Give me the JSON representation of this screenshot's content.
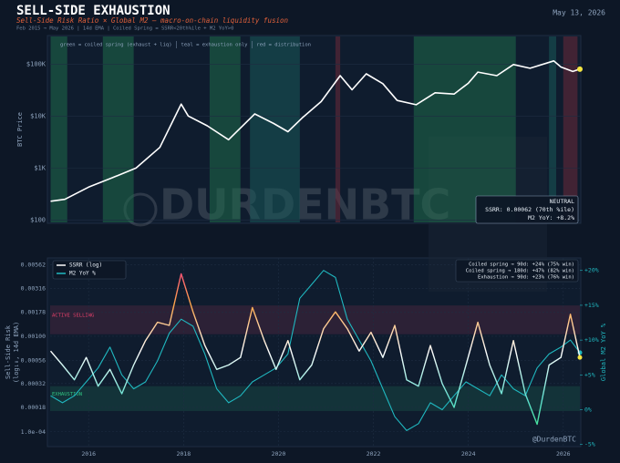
{
  "header": {
    "title": "SELL-SIDE EXHAUSTION",
    "subtitle": "Sell-Side Risk Ratio × Global M2 — macro-on-chain liquidity fusion",
    "note": "Feb 2015 → May 2026  |  14d EMA  |  Coiled Spring = SSRR<20th%ile + M2 YoY>0",
    "date": "May 13, 2026",
    "watermark": "DURDENBTC"
  },
  "chart_data": [
    {
      "type": "line",
      "log_y": true,
      "ylabel": "BTC Price",
      "x": [
        2015.2,
        2015.5,
        2016.0,
        2016.5,
        2017.0,
        2017.5,
        2017.95,
        2018.1,
        2018.5,
        2018.95,
        2019.5,
        2019.9,
        2020.2,
        2020.5,
        2020.9,
        2021.3,
        2021.55,
        2021.85,
        2022.2,
        2022.5,
        2022.9,
        2023.3,
        2023.7,
        2024.0,
        2024.2,
        2024.6,
        2024.95,
        2025.3,
        2025.8,
        2025.95,
        2026.2,
        2026.35
      ],
      "series": [
        {
          "color": "#ffffff",
          "values": [
            230,
            250,
            430,
            650,
            1000,
            2500,
            17000,
            10000,
            6500,
            3500,
            11000,
            7200,
            5000,
            9200,
            19000,
            60000,
            32000,
            65000,
            42000,
            20000,
            16500,
            28000,
            26500,
            43000,
            70000,
            60000,
            98000,
            83000,
            115000,
            88000,
            72000,
            80000
          ]
        }
      ],
      "end_marker_color": "#f5e642",
      "xlim": [
        2015.19,
        2026.35
      ],
      "ylim": [
        90,
        340000
      ],
      "yticks": [
        {
          "value": 100,
          "label": "$100"
        },
        {
          "value": 1000,
          "label": "$1K"
        },
        {
          "value": 10000,
          "label": "$10K"
        },
        {
          "value": 100000,
          "label": "$100K"
        }
      ],
      "grid": true,
      "regime_key": [
        "green = coiled spring (exhaust + liq)",
        "teal = exhaustion only",
        "red = distribution"
      ],
      "spans": [
        {
          "x0": 2015.2,
          "x1": 2015.55,
          "color": "#1f6b4a"
        },
        {
          "x0": 2016.3,
          "x1": 2016.95,
          "color": "#1f6b4a"
        },
        {
          "x0": 2018.55,
          "x1": 2019.2,
          "color": "#1f6b4a"
        },
        {
          "x0": 2019.4,
          "x1": 2020.45,
          "color": "#1a5a5a"
        },
        {
          "x0": 2021.2,
          "x1": 2021.3,
          "color": "#6b2a3a"
        },
        {
          "x0": 2022.85,
          "x1": 2025.0,
          "color": "#1f6b4a"
        },
        {
          "x0": 2025.7,
          "x1": 2025.85,
          "color": "#1a5a5a"
        },
        {
          "x0": 2026.0,
          "x1": 2026.3,
          "color": "#6b2a3a"
        }
      ],
      "status": [
        "NEUTRAL",
        "SSRR: 0.00062 (70th %ile)",
        "M2 YoY: +8.2%"
      ]
    },
    {
      "type": "line",
      "log_y": true,
      "ylabel": [
        "Sell-Side Risk",
        "(log₁₀, 14d EMA)"
      ],
      "y2label": "Global M2 YoY %",
      "x": [
        2015.2,
        2015.45,
        2015.7,
        2015.95,
        2016.2,
        2016.45,
        2016.7,
        2016.95,
        2017.2,
        2017.45,
        2017.7,
        2017.95,
        2018.2,
        2018.45,
        2018.7,
        2018.95,
        2019.2,
        2019.45,
        2019.7,
        2019.95,
        2020.2,
        2020.45,
        2020.7,
        2020.95,
        2021.2,
        2021.45,
        2021.7,
        2021.95,
        2022.2,
        2022.45,
        2022.7,
        2022.95,
        2023.2,
        2023.45,
        2023.7,
        2023.95,
        2024.2,
        2024.45,
        2024.7,
        2024.95,
        2025.2,
        2025.45,
        2025.7,
        2025.95,
        2026.15,
        2026.35
      ],
      "series": [
        {
          "name": "SSRR (log)",
          "color": "#ffffff",
          "values": [
            0.0007,
            0.0005,
            0.00035,
            0.0006,
            0.0003,
            0.00045,
            0.00025,
            0.0005,
            0.0009,
            0.0014,
            0.0013,
            0.0045,
            0.0018,
            0.0008,
            0.00045,
            0.0005,
            0.0006,
            0.002,
            0.0009,
            0.00045,
            0.0009,
            0.00035,
            0.0005,
            0.0012,
            0.0018,
            0.0012,
            0.0007,
            0.0011,
            0.0006,
            0.0013,
            0.00035,
            0.0003,
            0.0008,
            0.00032,
            0.00018,
            0.0005,
            0.0014,
            0.0005,
            0.00025,
            0.0009,
            0.00025,
            0.00012,
            0.0005,
            0.0006,
            0.0017,
            0.0006
          ]
        },
        {
          "name": "M2 YoY %",
          "color": "#20b8c0",
          "axis": "y2",
          "values": [
            2,
            1,
            2,
            4,
            6,
            9,
            5,
            3,
            4,
            7,
            11,
            13,
            12,
            8,
            3,
            1,
            2,
            4,
            5,
            6,
            8,
            16,
            18,
            20,
            19,
            13,
            10,
            7,
            3,
            -1,
            -3,
            -2,
            1,
            0,
            2,
            4,
            3,
            2,
            5,
            3,
            2,
            6,
            8,
            9,
            10,
            8.2
          ]
        }
      ],
      "color_scale": [
        "#ff2d8a",
        "#ffa84a",
        "#ffffff",
        "#5fe0d0",
        "#30e070"
      ],
      "xlim": [
        2015.19,
        2026.35
      ],
      "xticks": [
        2016,
        2018,
        2020,
        2022,
        2024,
        2026
      ],
      "ylim": [
        7e-05,
        0.0066
      ],
      "yticks": [
        {
          "value": 0.0001,
          "label": "1.0e-04"
        },
        0.00018,
        0.00032,
        0.00056,
        {
          "value": 0.001,
          "label": "0.00100"
        },
        0.00178,
        0.00316,
        0.00562
      ],
      "y2lim": [
        -5.3,
        21.8
      ],
      "y2ticks": [
        {
          "value": -5,
          "label": "-5%"
        },
        {
          "value": 0,
          "label": "0%"
        },
        {
          "value": 5,
          "label": "+5%"
        },
        {
          "value": 10,
          "label": "+10%"
        },
        {
          "value": 15,
          "label": "+15%"
        },
        {
          "value": 20,
          "label": "+20%"
        }
      ],
      "grid": true,
      "zones": [
        {
          "label": "ACTIVE SELLING",
          "y0": 0.00105,
          "y1": 0.0021,
          "color": "#e0406a"
        },
        {
          "label": "EXHAUSTION",
          "y0": 0.000165,
          "y1": 0.0003,
          "color": "#30c080"
        }
      ],
      "stats": [
        "Coiled spring → 90d: +24% (75% win)",
        "Coiled spring → 180d: +47% (82% win)",
        "Exhaustion → 90d: +23% (76% win)"
      ],
      "credit": "@DurdenBTC"
    }
  ]
}
